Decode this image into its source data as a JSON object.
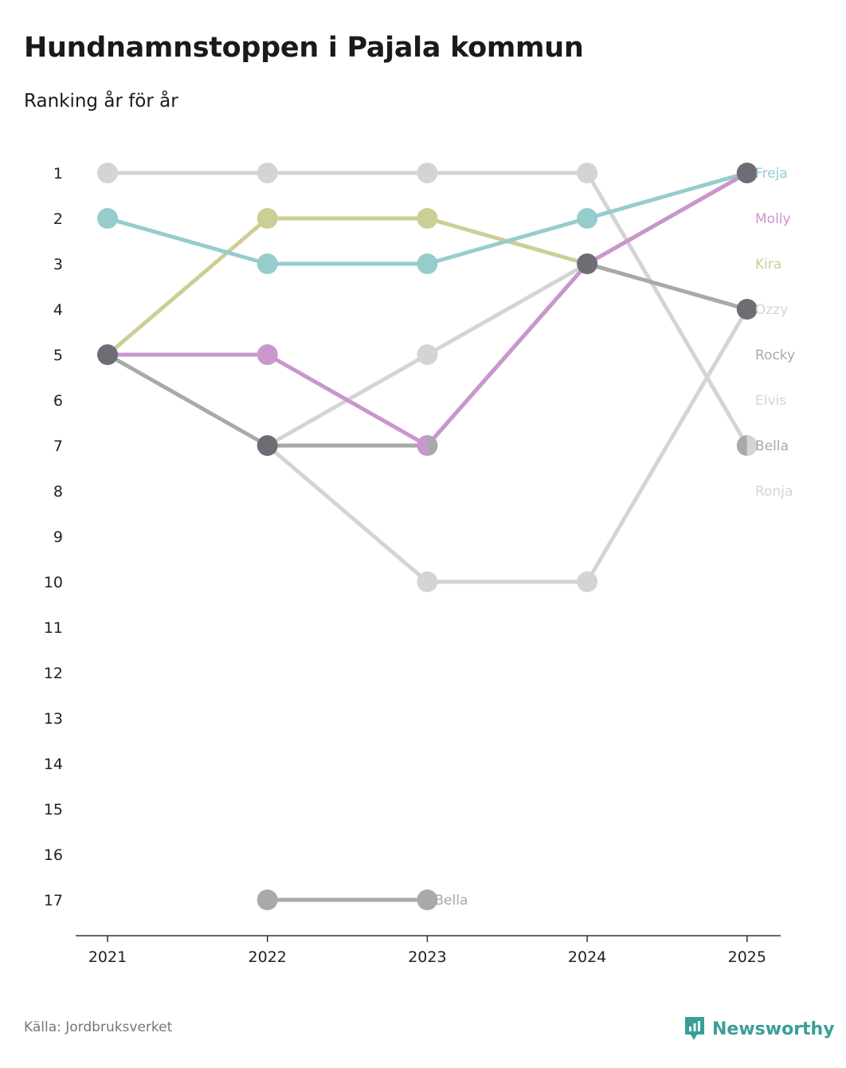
{
  "header": {
    "title": "Hundnamnstoppen i Pajala kommun",
    "subtitle": "Ranking år för år"
  },
  "footer": {
    "source": "Källa: Jordbruksverket",
    "brand": "Newsworthy"
  },
  "colors": {
    "freja": "#96cdcc",
    "molly": "#c996cd",
    "kira": "#cdcd96",
    "ozzy": "#d4d4d4",
    "rocky": "#a9a9ab",
    "elvis": "#d4d4d4",
    "bella": "#a9a9ab",
    "ronja": "#d4d4d4",
    "dark_marker": "#6e6d75",
    "brand": "#3a9e98"
  },
  "chart_data": {
    "type": "line",
    "title": "Hundnamnstoppen i Pajala kommun",
    "subtitle": "Ranking år för år",
    "x": [
      "2021",
      "2022",
      "2023",
      "2024",
      "2025"
    ],
    "y_ticks": [
      "1",
      "2",
      "3",
      "4",
      "5",
      "6",
      "7",
      "8",
      "9",
      "10",
      "11",
      "12",
      "13",
      "14",
      "15",
      "16",
      "17"
    ],
    "ylim": [
      1,
      17
    ],
    "y_inverted": true,
    "legend_placement": "right end labels",
    "series": [
      {
        "name": "Ronja",
        "color_key": "ronja",
        "values": [
          1,
          1,
          1,
          1,
          7
        ],
        "end_label": "Ronja"
      },
      {
        "name": "Elvis",
        "color_key": "elvis",
        "values": [
          null,
          7,
          10,
          10,
          4
        ],
        "end_label": "Elvis"
      },
      {
        "name": "Ozzy",
        "color_key": "ozzy",
        "values": [
          null,
          7,
          5,
          3,
          4
        ],
        "end_label": "Ozzy"
      },
      {
        "name": "Rocky",
        "color_key": "rocky",
        "values": [
          5,
          7,
          7,
          3,
          4
        ],
        "end_label": "Rocky"
      },
      {
        "name": "Bella",
        "color_key": "bella",
        "values": [
          null,
          7,
          7,
          null,
          7
        ],
        "end_label": "Bella"
      },
      {
        "name": "Bella (2)",
        "color_key": "bella",
        "values": [
          null,
          17,
          17,
          null,
          null
        ],
        "end_label": "Bella",
        "label_at": 2
      },
      {
        "name": "Kira",
        "color_key": "kira",
        "values": [
          5,
          2,
          2,
          3,
          1
        ],
        "end_label": "Kira"
      },
      {
        "name": "Freja",
        "color_key": "freja",
        "values": [
          2,
          3,
          3,
          2,
          1
        ],
        "end_label": "Freja"
      },
      {
        "name": "Molly",
        "color_key": "molly",
        "values": [
          5,
          5,
          7,
          3,
          1
        ],
        "end_label": "Molly"
      }
    ],
    "right_labels": [
      {
        "text": "Freja",
        "color_key": "freja",
        "rank": 1
      },
      {
        "text": "Molly",
        "color_key": "molly",
        "rank": 2
      },
      {
        "text": "Kira",
        "color_key": "kira",
        "rank": 3
      },
      {
        "text": "Ozzy",
        "color_key": "ozzy",
        "rank": 4
      },
      {
        "text": "Rocky",
        "color_key": "rocky",
        "rank": 5
      },
      {
        "text": "Elvis",
        "color_key": "elvis",
        "rank": 6
      },
      {
        "text": "Bella",
        "color_key": "bella",
        "rank": 7
      },
      {
        "text": "Ronja",
        "color_key": "ronja",
        "rank": 8
      }
    ],
    "inline_labels": [
      {
        "text": "Bella",
        "color_key": "bella",
        "x_index": 2,
        "rank": 17
      }
    ],
    "overlap_points": [
      {
        "x_index": 0,
        "rank": 5
      },
      {
        "x_index": 1,
        "rank": 7
      },
      {
        "x_index": 3,
        "rank": 3
      },
      {
        "x_index": 4,
        "rank": 1
      },
      {
        "x_index": 4,
        "rank": 4
      }
    ],
    "split_points": [
      {
        "x_index": 2,
        "rank": 7,
        "left_color_key": "molly",
        "right_color_key": "bella"
      },
      {
        "x_index": 4,
        "rank": 7,
        "left_color_key": "bella",
        "right_color_key": "ronja"
      }
    ]
  }
}
